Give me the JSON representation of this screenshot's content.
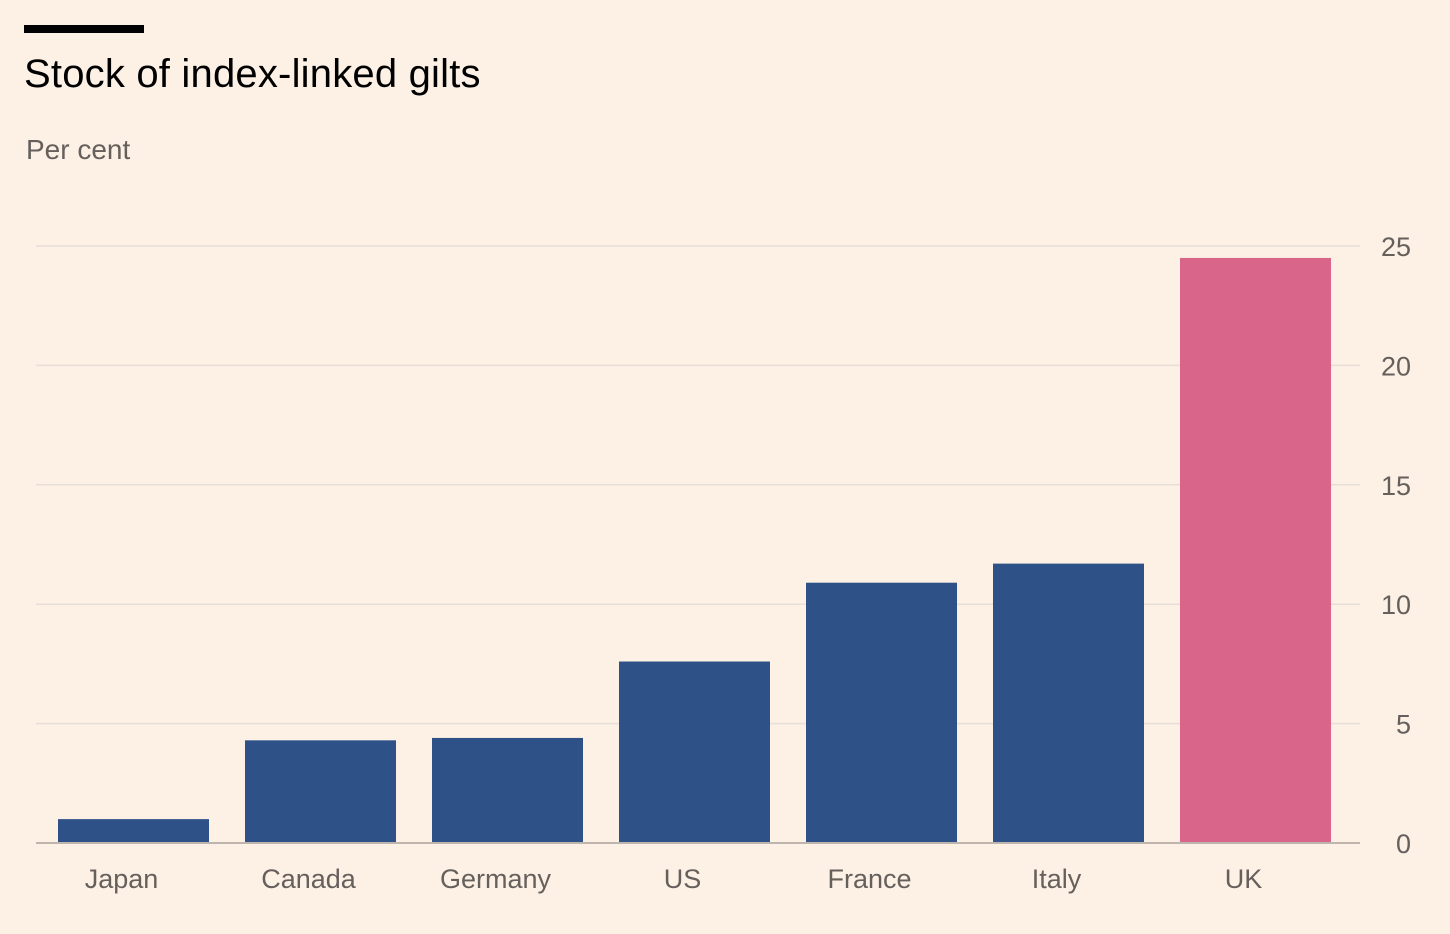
{
  "title": "Stock of index-linked gilts",
  "subtitle": "Per cent",
  "colors": {
    "background": "#fdf1e6",
    "bar_default": "#2e5288",
    "bar_highlight": "#d9658a",
    "gridline": "#e6dfd8",
    "axis_text": "#66605c"
  },
  "chart_data": {
    "type": "bar",
    "categories": [
      "Japan",
      "Canada",
      "Germany",
      "US",
      "France",
      "Italy",
      "UK"
    ],
    "values": [
      1.0,
      4.3,
      4.4,
      7.6,
      10.9,
      11.7,
      24.5
    ],
    "highlight": [
      "UK"
    ],
    "ylim": [
      0,
      25
    ],
    "yticks": [
      0,
      5,
      10,
      15,
      20,
      25
    ],
    "ytick_labels": [
      "0",
      "5",
      "10",
      "15",
      "20",
      "25"
    ],
    "y_axis_position": "right",
    "grid": true
  }
}
